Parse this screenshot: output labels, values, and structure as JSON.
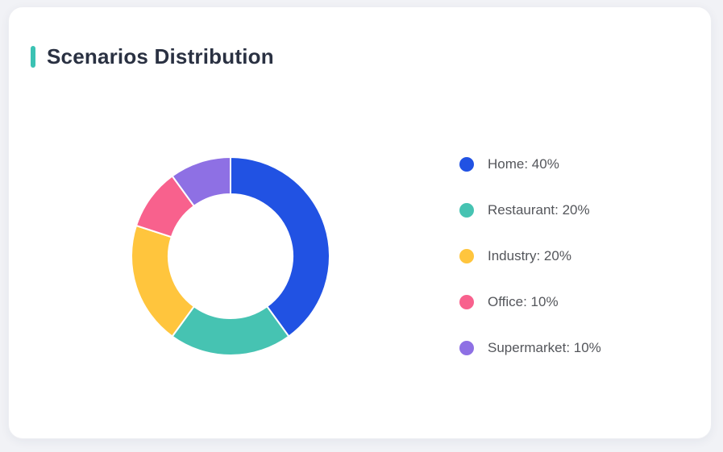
{
  "card": {
    "title": "Scenarios Distribution"
  },
  "theme": {
    "page_background": "#F1F2F6",
    "card_background": "#FFFFFF",
    "accent_bar_color": "#3BC2B3",
    "title_color": "#2A3142",
    "legend_text_color": "#54565B",
    "segment_gap_color": "#FFFFFF"
  },
  "chart_data": {
    "type": "pie",
    "title": "Scenarios Distribution",
    "categories": [
      "Home",
      "Restaurant",
      "Industry",
      "Office",
      "Supermarket"
    ],
    "values": [
      40,
      20,
      20,
      10,
      10
    ],
    "unit": "%",
    "colors": [
      "#2152E3",
      "#46C3B2",
      "#FFC53D",
      "#F8618D",
      "#8E70E4"
    ],
    "donut": true,
    "inner_radius_ratio": 0.63,
    "start_angle_deg": 0,
    "direction": "clockwise",
    "legend_position": "right",
    "legend_format": "{name}: {value}%",
    "legend": [
      "Home: 40%",
      "Restaurant: 20%",
      "Industry: 20%",
      "Office: 10%",
      "Supermarket: 10%"
    ]
  }
}
